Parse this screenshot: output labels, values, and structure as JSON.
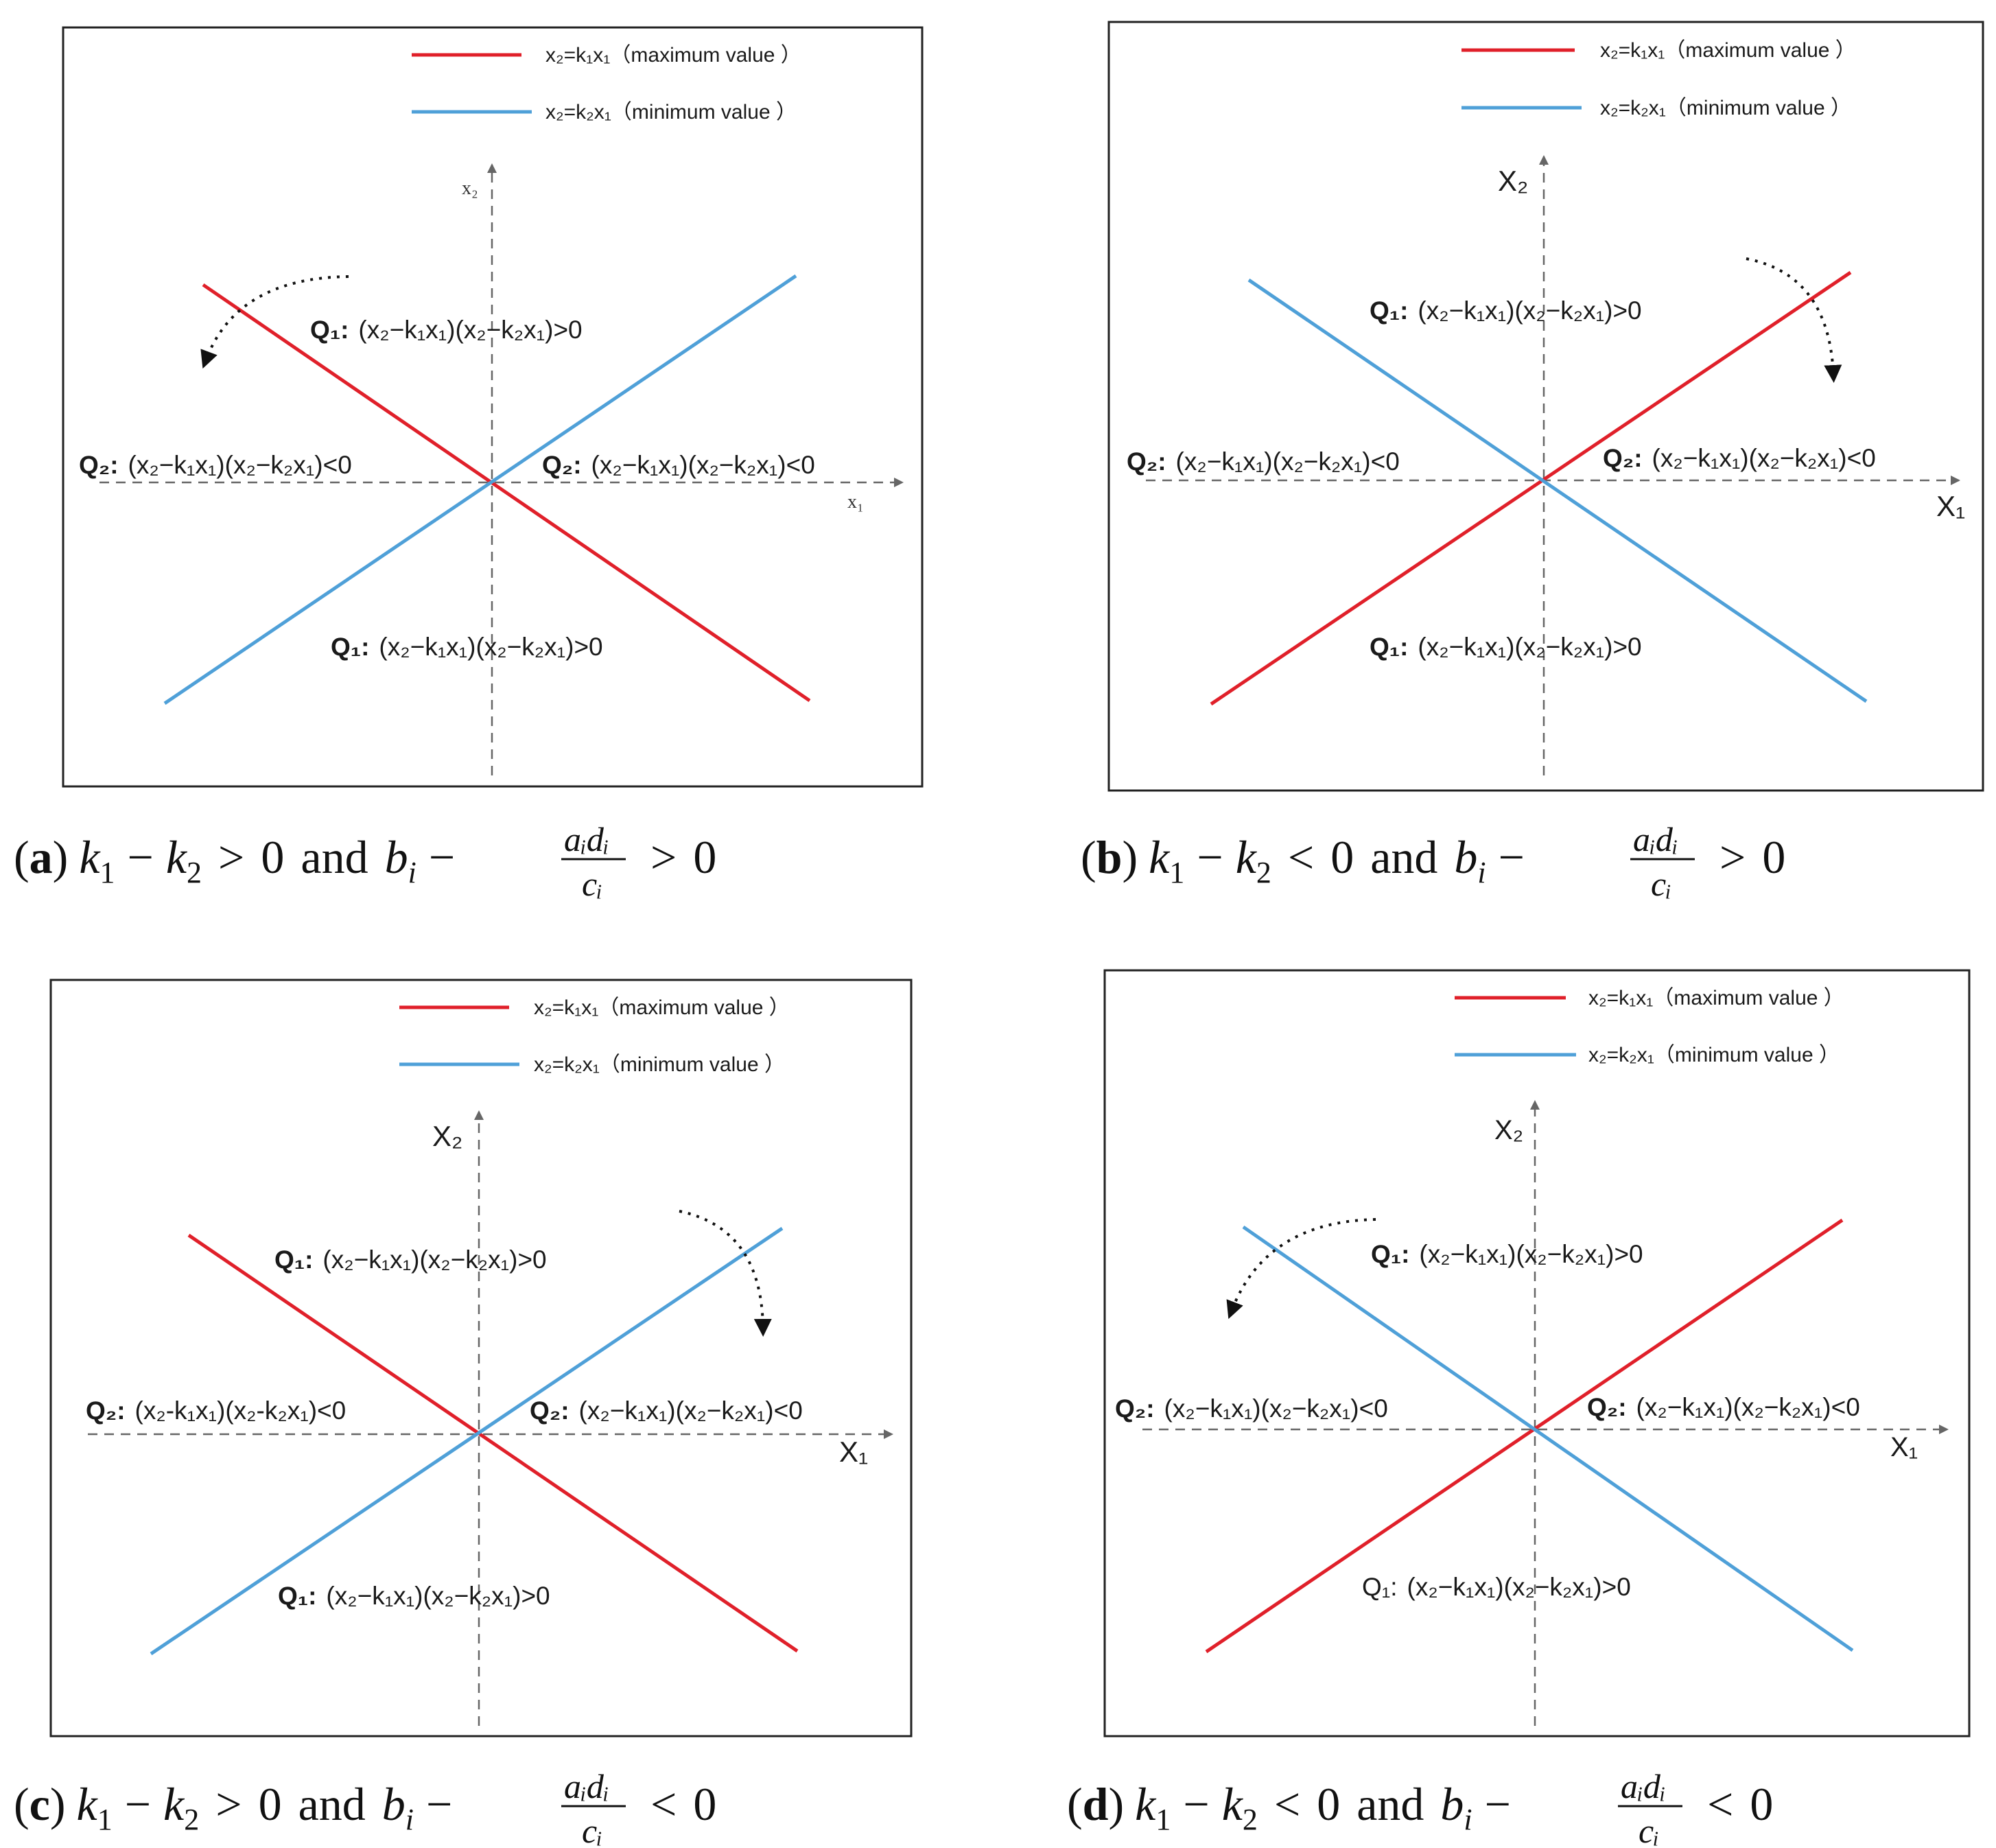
{
  "colors": {
    "max_line": "#e0202a",
    "min_line": "#4fa0d8",
    "axis": "#666666",
    "frame": "#222222"
  },
  "legend": {
    "max_label": "x₂=k₁x₁（maximum value ）",
    "min_label": "x₂=k₂x₁（minimum  value ）"
  },
  "region_labels": {
    "q1": "Q₁:",
    "q2": "Q₂:",
    "q1_expr": "(x₂−k₁x₁)(x₂−k₂x₁)>0",
    "q2_expr": "(x₂−k₁x₁)(x₂−k₂x₁)<0",
    "q2_expr_alt": "(x₂-k₁x₁)(x₂-k₂x₁)<0"
  },
  "panels": [
    {
      "id": "a",
      "x_axis_label": "x₁",
      "y_axis_label": "x₂",
      "rotation": "counterclockwise",
      "caption": {
        "letter": "a",
        "relation": ">",
        "sign": ">"
      }
    },
    {
      "id": "b",
      "x_axis_label": "X₁",
      "y_axis_label": "X₂",
      "rotation": "clockwise",
      "caption": {
        "letter": "b",
        "relation": "<",
        "sign": ">"
      }
    },
    {
      "id": "c",
      "x_axis_label": "X₁",
      "y_axis_label": "X₂",
      "rotation": "clockwise",
      "caption": {
        "letter": "c",
        "relation": ">",
        "sign": "<"
      }
    },
    {
      "id": "d",
      "x_axis_label": "X₁",
      "y_axis_label": "X₂",
      "rotation": "counterclockwise",
      "caption": {
        "letter": "d",
        "relation": "<",
        "sign": "<"
      }
    }
  ],
  "caption_parts": {
    "k1": "k",
    "sub1": "1",
    "minus": "−",
    "sub2": "2",
    "zero": "0",
    "and": "and",
    "b": "b",
    "i": "i",
    "frac_num": "aᵢdᵢ",
    "frac_den": "cᵢ"
  }
}
